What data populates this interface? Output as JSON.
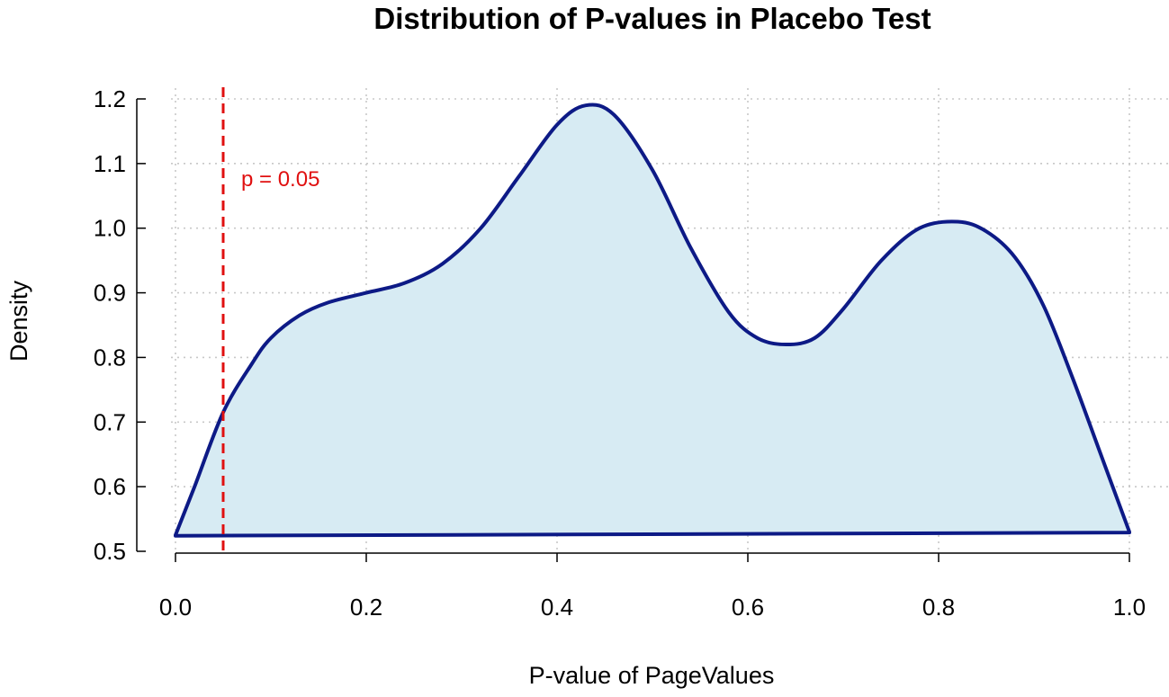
{
  "chart_data": {
    "type": "area",
    "title": "Distribution of P-values in Placebo Test",
    "xlabel": "P-value of PageValues",
    "ylabel": "Density",
    "xlim": [
      0.0,
      1.0
    ],
    "ylim": [
      0.5,
      1.2
    ],
    "x_ticks": [
      "0.0",
      "0.2",
      "0.4",
      "0.6",
      "0.8",
      "1.0"
    ],
    "y_ticks": [
      "0.5",
      "0.6",
      "0.7",
      "0.8",
      "0.9",
      "1.0",
      "1.1",
      "1.2"
    ],
    "grid": true,
    "series": [
      {
        "name": "density",
        "x": [
          0.0,
          0.02,
          0.05,
          0.08,
          0.1,
          0.13,
          0.16,
          0.2,
          0.24,
          0.28,
          0.32,
          0.36,
          0.4,
          0.43,
          0.46,
          0.5,
          0.54,
          0.58,
          0.61,
          0.64,
          0.67,
          0.7,
          0.74,
          0.78,
          0.82,
          0.85,
          0.88,
          0.91,
          0.94,
          0.97,
          1.0
        ],
        "y": [
          0.525,
          0.6,
          0.715,
          0.79,
          0.83,
          0.865,
          0.885,
          0.9,
          0.915,
          0.945,
          1.0,
          1.08,
          1.16,
          1.19,
          1.175,
          1.09,
          0.97,
          0.87,
          0.83,
          0.82,
          0.83,
          0.875,
          0.95,
          1.0,
          1.01,
          0.995,
          0.955,
          0.88,
          0.77,
          0.65,
          0.53
        ]
      }
    ],
    "baseline": {
      "x": [
        0.0,
        1.0
      ],
      "y": [
        0.524,
        0.529
      ]
    },
    "reference_line": {
      "x": 0.05,
      "label": "p = 0.05",
      "color": "#e01010"
    },
    "colors": {
      "fill": "#d7ebf3",
      "stroke": "#0d1a86"
    }
  }
}
